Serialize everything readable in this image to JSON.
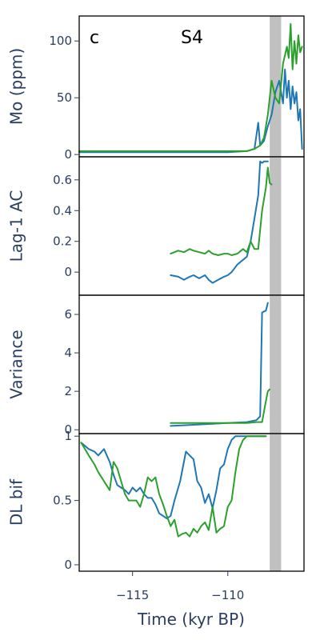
{
  "figure": {
    "panel_label": "c",
    "title": "S4",
    "x_title": "Time (kyr BP)"
  },
  "colors": {
    "blue": "#1f77b4",
    "green": "#2ca02c",
    "shade": "#c0c0c0",
    "frame": "#000000",
    "text": "#2a3f5f"
  },
  "chart_data": [
    {
      "type": "line",
      "ylabel": "Mo (ppm)",
      "xlim": [
        -117.8,
        -106.0
      ],
      "ylim": [
        -2,
        122
      ],
      "yticks": [
        0,
        50,
        100
      ],
      "shaded_x": [
        -107.8,
        -107.2
      ],
      "series": [
        {
          "color": "blue",
          "x": [
            -117.8,
            -117.0,
            -116.0,
            -115.0,
            -114.0,
            -113.0,
            -112.0,
            -111.0,
            -110.0,
            -109.0,
            -108.6,
            -108.4,
            -108.3,
            -108.1,
            -107.9,
            -107.7,
            -107.5,
            -107.3,
            -107.1,
            -107.0,
            -106.9,
            -106.8,
            -106.7,
            -106.6,
            -106.5,
            -106.4,
            -106.3,
            -106.2,
            -106.1
          ],
          "y": [
            2,
            2,
            2,
            2,
            2,
            2,
            2,
            2,
            2,
            3,
            5,
            28,
            8,
            12,
            25,
            35,
            55,
            65,
            45,
            75,
            50,
            65,
            40,
            60,
            45,
            55,
            30,
            40,
            5
          ]
        },
        {
          "color": "green",
          "x": [
            -117.8,
            -117.0,
            -116.0,
            -115.0,
            -114.0,
            -113.0,
            -112.0,
            -111.0,
            -110.0,
            -109.0,
            -108.6,
            -108.3,
            -108.1,
            -107.9,
            -107.7,
            -107.5,
            -107.3,
            -107.1,
            -106.9,
            -106.8,
            -106.7,
            -106.6,
            -106.5,
            -106.4,
            -106.3,
            -106.2,
            -106.1
          ],
          "y": [
            3,
            3,
            3,
            3,
            3,
            3,
            3,
            3,
            3,
            3,
            5,
            8,
            15,
            35,
            65,
            50,
            45,
            80,
            95,
            85,
            115,
            75,
            100,
            80,
            105,
            90,
            95
          ]
        }
      ]
    },
    {
      "type": "line",
      "ylabel": "Lag-1 AC",
      "xlim": [
        -117.8,
        -106.0
      ],
      "ylim": [
        -0.15,
        0.75
      ],
      "yticks": [
        0,
        0.2,
        0.4,
        0.6
      ],
      "shaded_x": [
        -107.8,
        -107.2
      ],
      "series": [
        {
          "color": "blue",
          "x": [
            -113.0,
            -112.6,
            -112.3,
            -112.0,
            -111.8,
            -111.5,
            -111.2,
            -111.0,
            -110.8,
            -110.5,
            -110.2,
            -110.0,
            -109.8,
            -109.5,
            -109.2,
            -109.0,
            -108.8,
            -108.6,
            -108.4,
            -108.3,
            -108.2,
            -108.1,
            -108.0,
            -107.9
          ],
          "y": [
            -0.02,
            -0.03,
            -0.05,
            -0.03,
            -0.02,
            -0.04,
            -0.02,
            -0.05,
            -0.07,
            -0.05,
            -0.03,
            -0.02,
            0.0,
            0.05,
            0.08,
            0.1,
            0.2,
            0.35,
            0.5,
            0.72,
            0.71,
            0.72,
            0.72,
            0.72
          ]
        },
        {
          "color": "green",
          "x": [
            -113.0,
            -112.6,
            -112.3,
            -112.0,
            -111.8,
            -111.5,
            -111.2,
            -111.0,
            -110.8,
            -110.5,
            -110.2,
            -110.0,
            -109.8,
            -109.5,
            -109.2,
            -109.0,
            -108.8,
            -108.6,
            -108.4,
            -108.2,
            -108.0,
            -107.9,
            -107.8,
            -107.7
          ],
          "y": [
            0.12,
            0.14,
            0.13,
            0.15,
            0.14,
            0.13,
            0.12,
            0.14,
            0.12,
            0.11,
            0.12,
            0.12,
            0.11,
            0.12,
            0.15,
            0.13,
            0.2,
            0.15,
            0.15,
            0.4,
            0.55,
            0.68,
            0.58,
            0.57
          ]
        }
      ]
    },
    {
      "type": "line",
      "ylabel": "Variance",
      "xlim": [
        -117.8,
        -106.0
      ],
      "ylim": [
        -0.2,
        7.0
      ],
      "yticks": [
        0,
        2,
        4,
        6
      ],
      "shaded_x": [
        -107.8,
        -107.2
      ],
      "series": [
        {
          "color": "blue",
          "x": [
            -113.0,
            -112.0,
            -111.0,
            -110.0,
            -109.0,
            -108.5,
            -108.3,
            -108.2,
            -108.0,
            -107.9
          ],
          "y": [
            0.2,
            0.25,
            0.3,
            0.35,
            0.4,
            0.5,
            0.7,
            6.1,
            6.2,
            6.6
          ]
        },
        {
          "color": "green",
          "x": [
            -113.0,
            -112.0,
            -111.0,
            -110.0,
            -109.0,
            -108.5,
            -108.2,
            -108.0,
            -107.9,
            -107.8
          ],
          "y": [
            0.35,
            0.35,
            0.35,
            0.35,
            0.35,
            0.4,
            0.4,
            1.5,
            2.0,
            2.1
          ]
        }
      ]
    },
    {
      "type": "line",
      "ylabel": "DL bif",
      "xlim": [
        -117.8,
        -106.0
      ],
      "ylim": [
        -0.05,
        1.02
      ],
      "yticks": [
        0,
        0.5,
        1
      ],
      "shaded_x": [
        -107.8,
        -107.2
      ],
      "series": [
        {
          "color": "blue",
          "x": [
            -117.7,
            -117.3,
            -117.0,
            -116.8,
            -116.5,
            -116.2,
            -116.0,
            -115.8,
            -115.6,
            -115.4,
            -115.2,
            -115.0,
            -114.8,
            -114.6,
            -114.4,
            -114.2,
            -114.0,
            -113.8,
            -113.6,
            -113.4,
            -113.2,
            -113.0,
            -112.8,
            -112.5,
            -112.2,
            -112.0,
            -111.8,
            -111.6,
            -111.4,
            -111.2,
            -111.0,
            -110.8,
            -110.6,
            -110.4,
            -110.2,
            -110.0,
            -109.8,
            -109.6,
            -109.4,
            -109.2,
            -109.0,
            -108.5,
            -108.0
          ],
          "y": [
            0.95,
            0.9,
            0.88,
            0.85,
            0.9,
            0.8,
            0.7,
            0.62,
            0.6,
            0.58,
            0.55,
            0.6,
            0.57,
            0.6,
            0.55,
            0.52,
            0.52,
            0.47,
            0.4,
            0.38,
            0.36,
            0.38,
            0.5,
            0.65,
            0.88,
            0.85,
            0.82,
            0.65,
            0.6,
            0.48,
            0.55,
            0.44,
            0.58,
            0.75,
            0.78,
            0.9,
            0.97,
            1.0,
            1.0,
            1.0,
            1.0,
            1.0,
            1.0
          ]
        },
        {
          "color": "green",
          "x": [
            -117.7,
            -117.3,
            -117.0,
            -116.8,
            -116.5,
            -116.2,
            -116.0,
            -115.8,
            -115.6,
            -115.4,
            -115.2,
            -115.0,
            -114.8,
            -114.6,
            -114.4,
            -114.2,
            -114.0,
            -113.8,
            -113.6,
            -113.4,
            -113.2,
            -113.0,
            -112.8,
            -112.6,
            -112.4,
            -112.2,
            -112.0,
            -111.8,
            -111.6,
            -111.4,
            -111.2,
            -111.0,
            -110.8,
            -110.6,
            -110.4,
            -110.2,
            -110.0,
            -109.8,
            -109.6,
            -109.4,
            -109.2,
            -109.0,
            -108.5,
            -108.0
          ],
          "y": [
            0.95,
            0.85,
            0.78,
            0.72,
            0.65,
            0.58,
            0.8,
            0.75,
            0.65,
            0.55,
            0.5,
            0.5,
            0.5,
            0.45,
            0.55,
            0.68,
            0.65,
            0.68,
            0.55,
            0.47,
            0.38,
            0.3,
            0.35,
            0.22,
            0.24,
            0.25,
            0.22,
            0.28,
            0.25,
            0.3,
            0.33,
            0.27,
            0.45,
            0.25,
            0.28,
            0.3,
            0.45,
            0.5,
            0.72,
            0.9,
            0.97,
            1.0,
            1.0,
            1.0
          ]
        }
      ]
    }
  ]
}
